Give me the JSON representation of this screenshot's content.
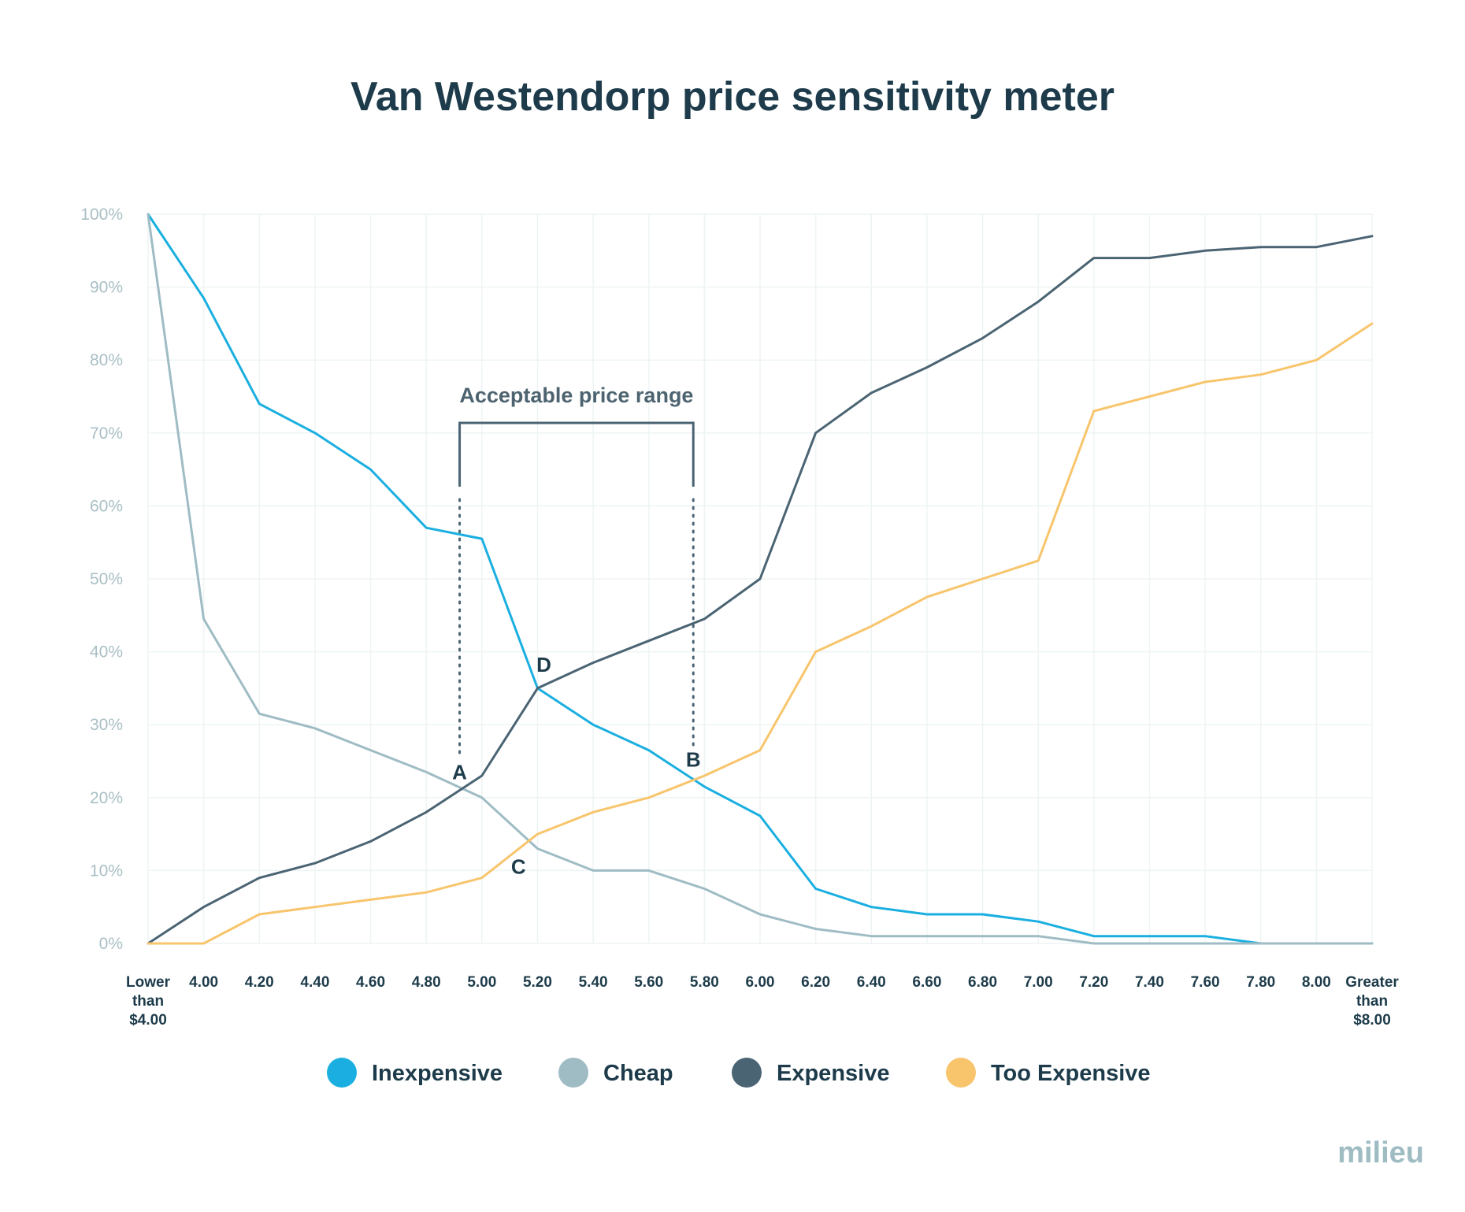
{
  "chart_data": {
    "type": "line",
    "title": "Van Westendorp price sensitivity meter",
    "categories": [
      "Lower than $4.00",
      "4.00",
      "4.20",
      "4.40",
      "4.60",
      "4.80",
      "5.00",
      "5.20",
      "5.40",
      "5.60",
      "5.80",
      "6.00",
      "6.20",
      "6.40",
      "6.60",
      "6.80",
      "7.00",
      "7.20",
      "7.40",
      "7.60",
      "7.80",
      "8.00",
      "Greater than $8.00"
    ],
    "y_ticks": [
      "0%",
      "10%",
      "20%",
      "30%",
      "40%",
      "50%",
      "60%",
      "70%",
      "80%",
      "90%",
      "100%"
    ],
    "ylim": [
      0,
      100
    ],
    "grid": true,
    "legend_position": "bottom",
    "series": [
      {
        "name": "Inexpensive",
        "color": "#1aafe0",
        "values": [
          100,
          88.5,
          74,
          70,
          65,
          57,
          55.5,
          35,
          30,
          26.5,
          21.5,
          17.5,
          7.5,
          5,
          4,
          4,
          3,
          1,
          1,
          1,
          0,
          0,
          0
        ]
      },
      {
        "name": "Cheap",
        "color": "#9fbcc4",
        "values": [
          100,
          44.5,
          31.5,
          29.5,
          26.5,
          23.5,
          20,
          13,
          10,
          10,
          7.5,
          4,
          2,
          1,
          1,
          1,
          1,
          0,
          0,
          0,
          0,
          0,
          0
        ]
      },
      {
        "name": "Expensive",
        "color": "#4b6473",
        "values": [
          0,
          5,
          9,
          11,
          14,
          18,
          23,
          35,
          38.5,
          41.5,
          44.5,
          50,
          70,
          75.5,
          79,
          83,
          88,
          94,
          94,
          95,
          95.5,
          95.5,
          97
        ]
      },
      {
        "name": "Too Expensive",
        "color": "#f8c56d",
        "values": [
          0,
          0,
          4,
          5,
          6,
          7,
          9,
          15,
          18,
          20,
          23,
          26.5,
          40,
          43.5,
          47.5,
          50,
          52.5,
          73,
          75,
          77,
          78,
          80,
          85
        ]
      }
    ],
    "annotations": {
      "points": [
        {
          "label": "A",
          "x_index": 5.6,
          "y": 21
        },
        {
          "label": "B",
          "x_index": 9.8,
          "y": 22.5
        },
        {
          "label": "C",
          "x_index": 6.8,
          "y": 14.5
        },
        {
          "label": "D",
          "x_index": 7.0,
          "y": 35
        }
      ],
      "range": {
        "label": "Acceptable price range",
        "from_point": "A",
        "to_point": "B"
      }
    }
  },
  "brand": "milieu"
}
